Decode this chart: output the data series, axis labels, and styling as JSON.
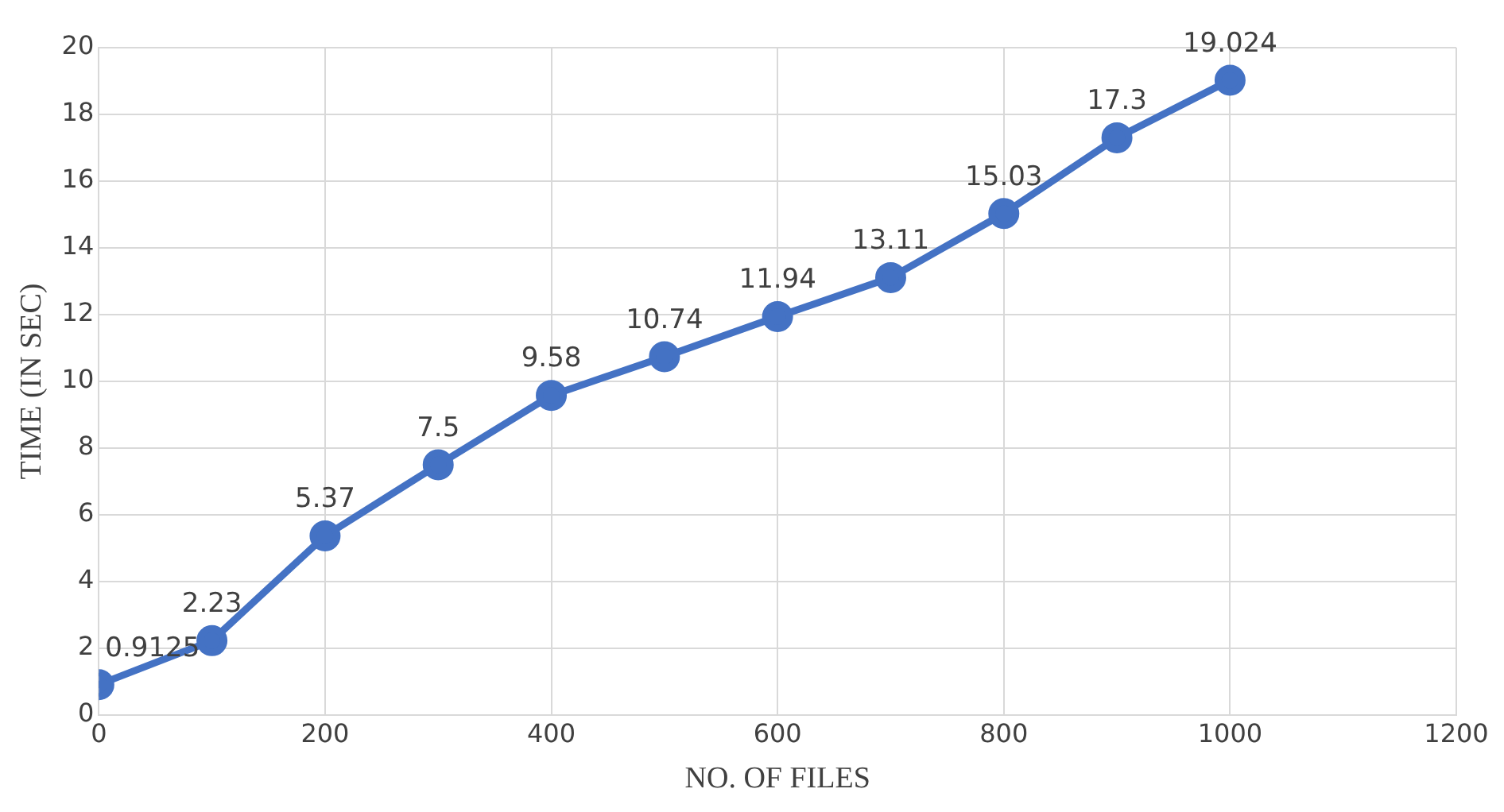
{
  "chart_data": {
    "type": "line",
    "xlabel": "NO. OF FILES",
    "ylabel": "TIME (IN SEC)",
    "x": [
      0,
      100,
      200,
      300,
      400,
      500,
      600,
      700,
      800,
      900,
      1000
    ],
    "series": [
      {
        "color": "#4472c4",
        "values": [
          0.9125,
          2.23,
          5.37,
          7.5,
          9.58,
          10.74,
          11.94,
          13.11,
          15.03,
          17.3,
          19.024
        ]
      }
    ],
    "xlim": [
      0,
      1200
    ],
    "xticks": [
      0,
      200,
      400,
      600,
      800,
      1000,
      1200
    ],
    "ylim": [
      0,
      20
    ],
    "yticks": [
      0,
      2,
      4,
      6,
      8,
      10,
      12,
      14,
      16,
      18,
      20
    ],
    "grid": true,
    "marker": "circle",
    "line_style": "solid",
    "data_labels": true,
    "legend": false
  }
}
